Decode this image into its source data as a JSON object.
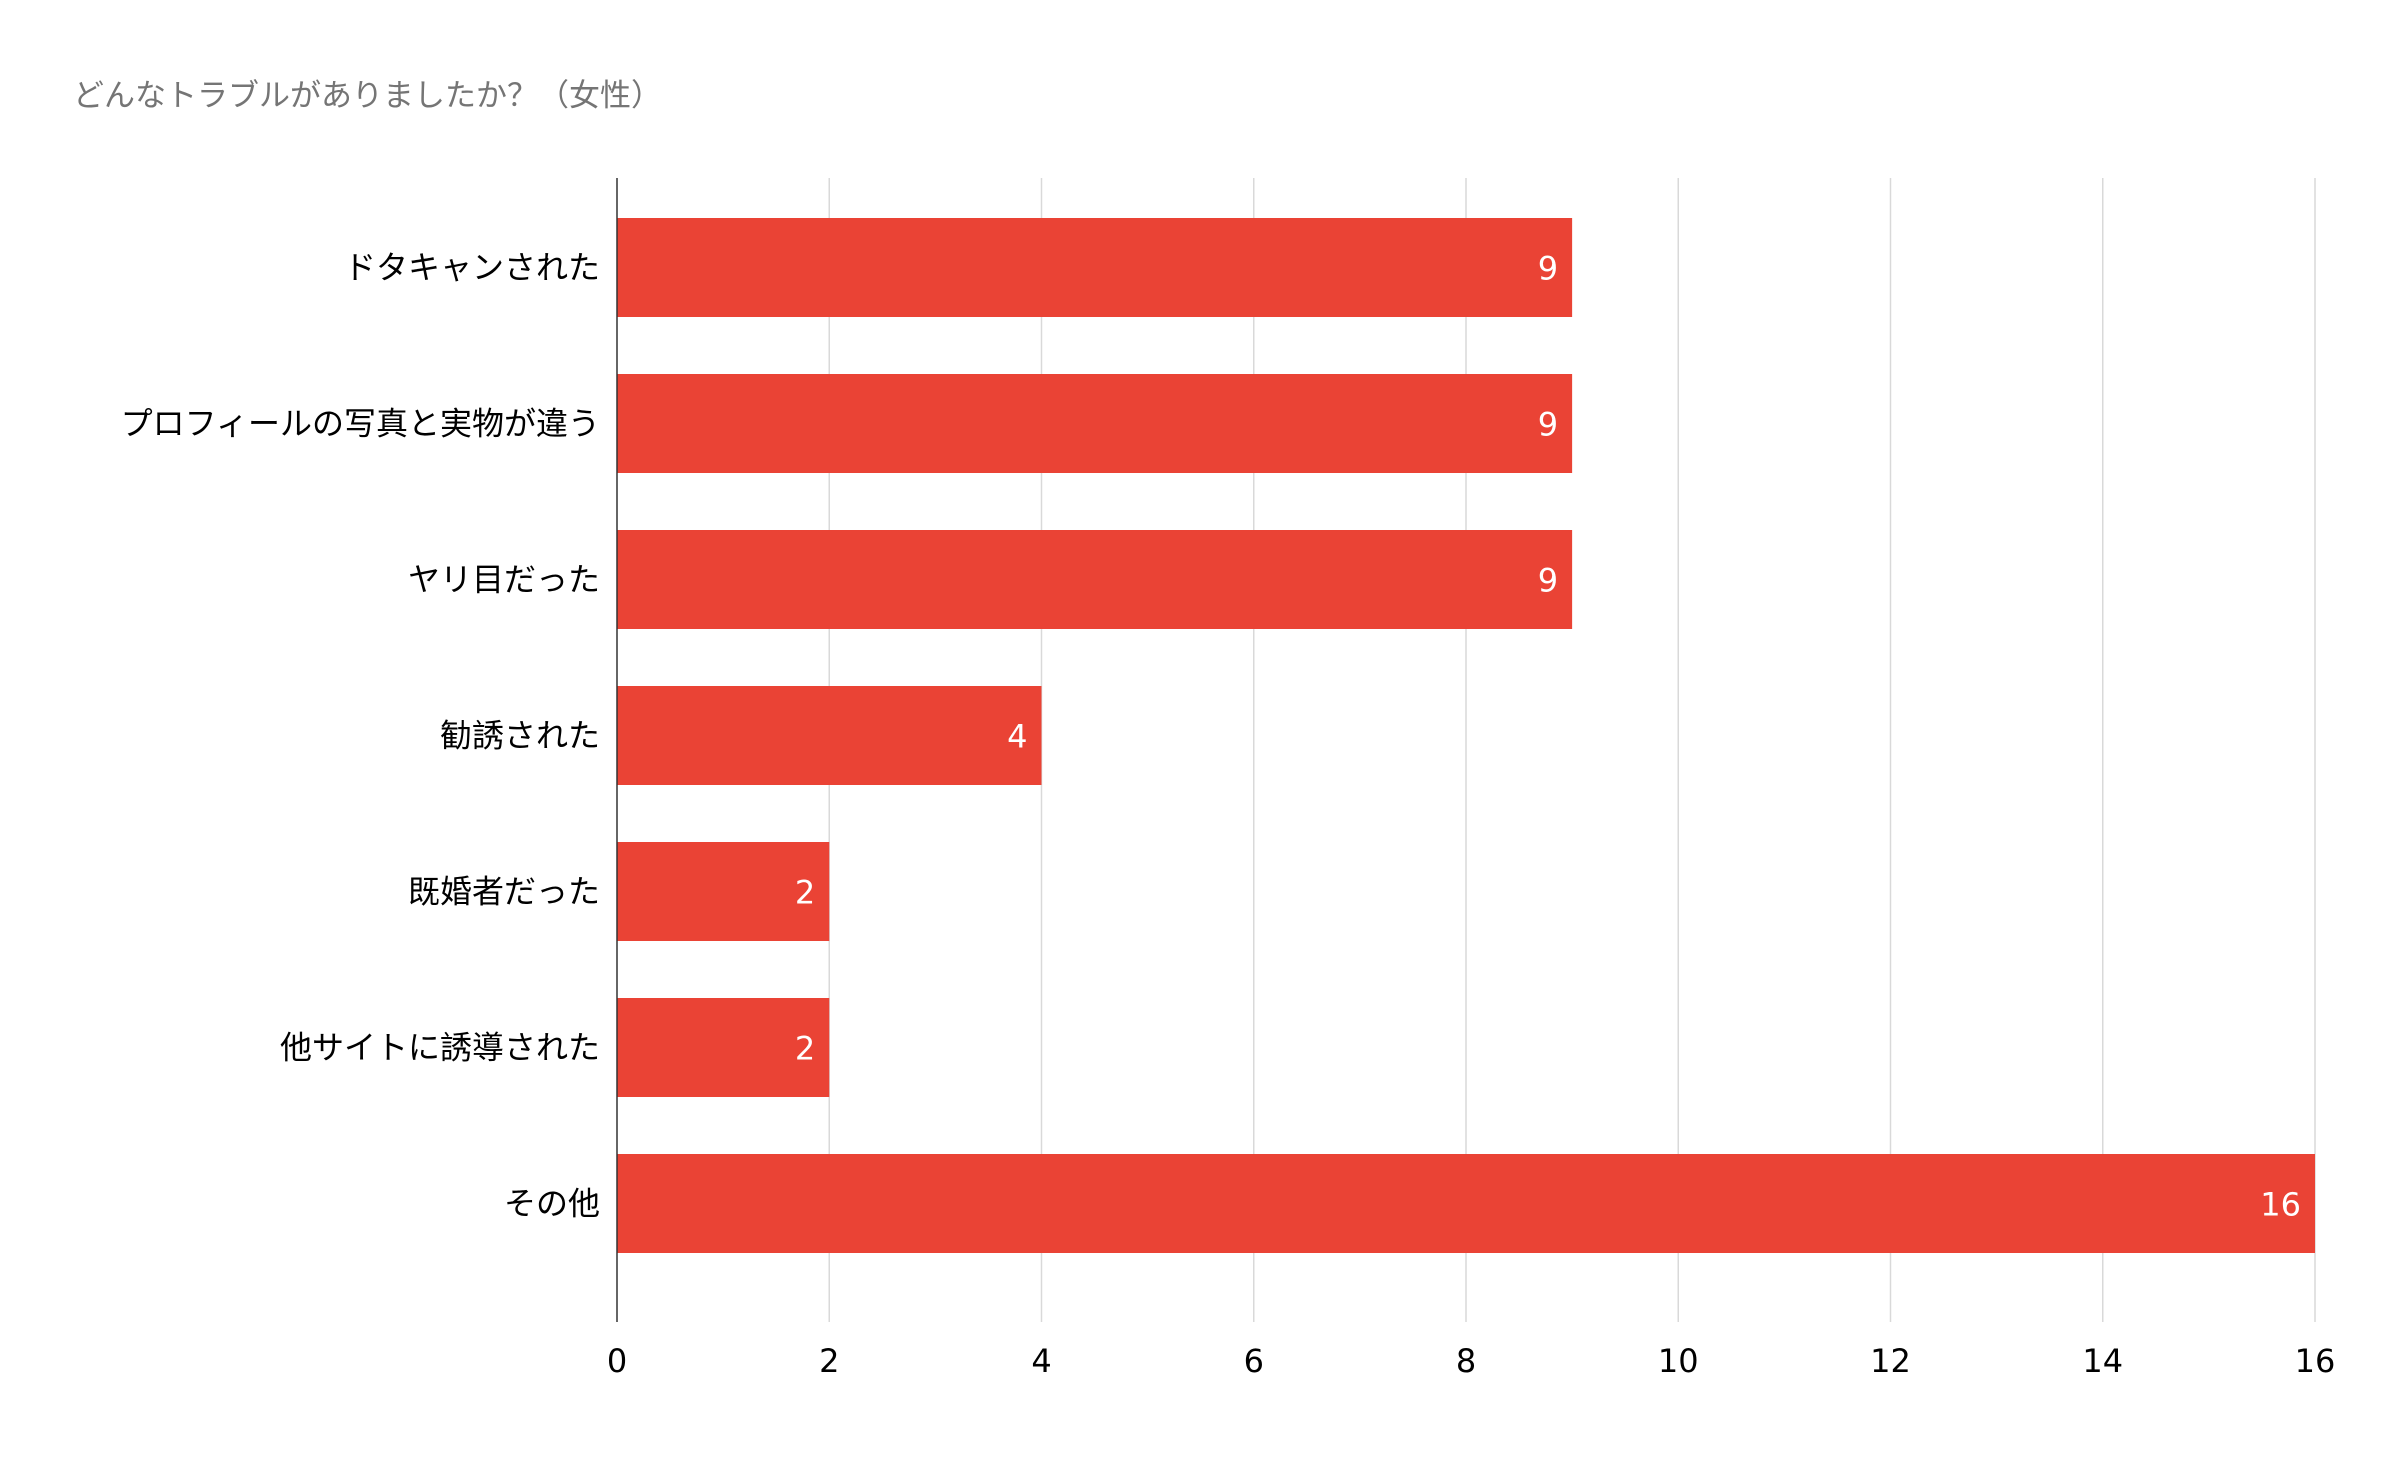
{
  "chart_data": {
    "type": "bar",
    "orientation": "horizontal",
    "title": "どんなトラブルがありましたか？（女性）",
    "categories": [
      "ドタキャンされた",
      "プロフィールの写真と実物が違う",
      "ヤリ目だった",
      "勧誘された",
      "既婚者だった",
      "他サイトに誘導された",
      "その他"
    ],
    "values": [
      9,
      9,
      9,
      4,
      2,
      2,
      16
    ],
    "xlim": [
      0,
      16
    ],
    "xticks": [
      0,
      2,
      4,
      6,
      8,
      10,
      12,
      14,
      16
    ],
    "xlabel": "",
    "ylabel": "",
    "grid": true,
    "legend": "none",
    "data_labels": true,
    "bar_color": "#ea4335",
    "label_color": "#ffffff",
    "gridline_color": "#d9d9d9",
    "axis_color": "#333333",
    "title_color": "#757575",
    "text_color": "#000000"
  }
}
